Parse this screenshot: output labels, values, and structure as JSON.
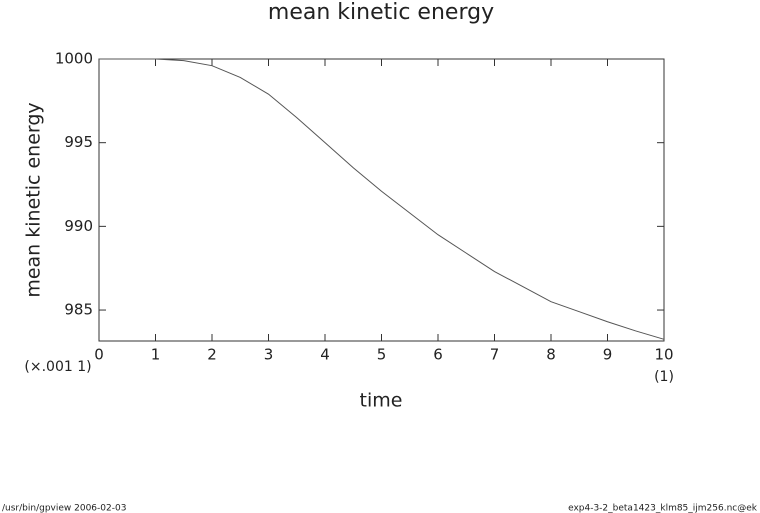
{
  "chart_data": {
    "type": "line",
    "title": "mean kinetic energy",
    "x_label": "time",
    "y_label": "mean kinetic energy",
    "x_scale_note": "(×.001 1)",
    "x_unit_note": "(1)",
    "x": [
      0,
      0.5,
      1,
      1.5,
      2,
      2.5,
      3,
      3.5,
      4,
      4.5,
      5,
      5.5,
      6,
      6.5,
      7,
      7.5,
      8,
      8.5,
      9,
      9.5,
      10
    ],
    "series": [
      {
        "name": "mean kinetic energy",
        "color": "#555555",
        "values": [
          1000,
          1000,
          1000,
          999.9,
          999.6,
          998.9,
          997.9,
          996.5,
          995.0,
          993.5,
          992.1,
          990.8,
          989.5,
          988.4,
          987.3,
          986.4,
          985.5,
          984.9,
          984.3,
          983.75,
          983.25
        ]
      }
    ],
    "xlim": [
      0,
      10
    ],
    "xticks": [
      0,
      1,
      2,
      3,
      4,
      5,
      6,
      7,
      8,
      9,
      10
    ],
    "ylim": [
      983.15,
      1000
    ],
    "yticks": [
      985,
      990,
      995,
      1000
    ],
    "footer_left": "/usr/bin/gpview   2006-02-03",
    "footer_right": "exp4-3-2_beta1423_klm85_ijm256.nc@ek"
  }
}
